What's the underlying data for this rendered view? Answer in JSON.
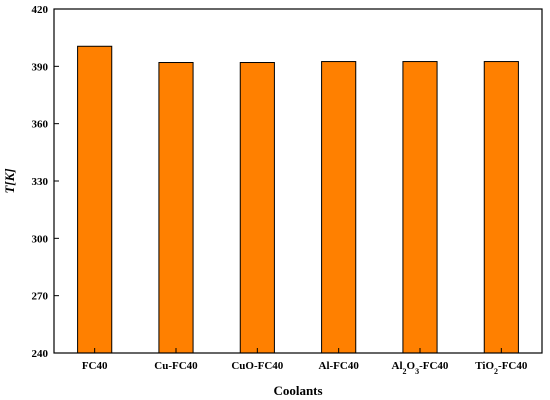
{
  "chart_data": {
    "type": "bar",
    "categories": [
      "FC40",
      "Cu-FC40",
      "CuO-FC40",
      "Al-FC40",
      "Al2O3-FC40",
      "TiO2-FC40"
    ],
    "values": [
      400.5,
      392,
      392,
      392.5,
      392.5,
      392.5
    ],
    "xlabel": "Coolants",
    "ylabel": "T[K]",
    "ylim": [
      240,
      420
    ],
    "yticks": [
      240,
      270,
      300,
      330,
      360,
      390,
      420
    ],
    "grid": false,
    "bar_color": "#FF8000",
    "bar_edge_color": "#000000"
  }
}
